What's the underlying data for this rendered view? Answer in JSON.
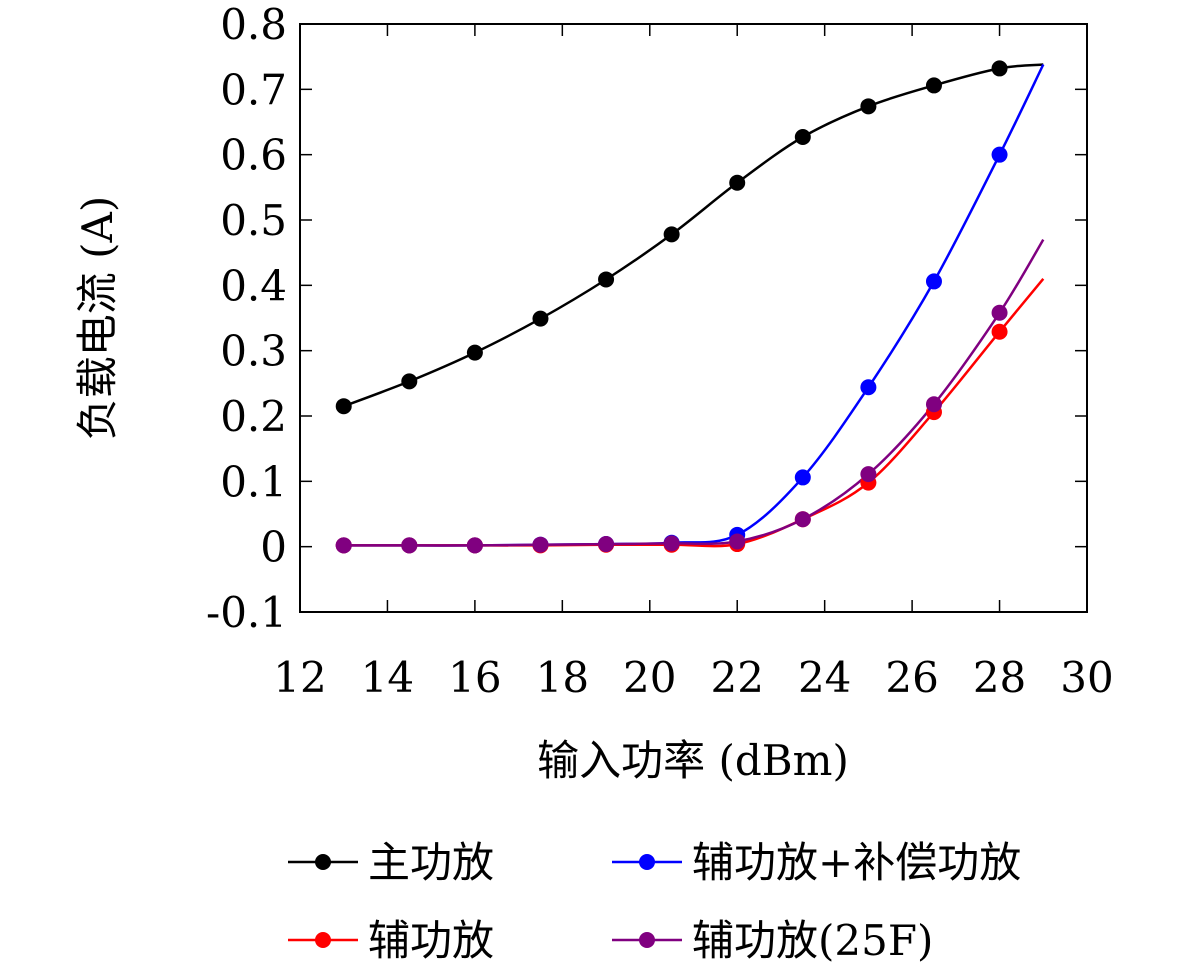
{
  "chart_data": {
    "type": "line",
    "xlabel": "输入功率 (dBm)",
    "ylabel": "负载电流 (A)",
    "xlim": [
      12,
      30
    ],
    "ylim": [
      -0.1,
      0.8
    ],
    "xticks": [
      "12",
      "14",
      "16",
      "18",
      "20",
      "22",
      "24",
      "26",
      "28",
      "30"
    ],
    "yticks": [
      "-0.1",
      "0",
      "0.1",
      "0.2",
      "0.3",
      "0.4",
      "0.5",
      "0.6",
      "0.7",
      "0.8"
    ],
    "grid": false,
    "legend_position": "bottom",
    "series": [
      {
        "name": "主功放",
        "color": "#000000",
        "x": [
          13,
          14.5,
          16,
          17.5,
          19,
          20.5,
          22,
          23.5,
          25,
          26.5,
          28
        ],
        "y": [
          0.215,
          0.253,
          0.297,
          0.349,
          0.409,
          0.478,
          0.557,
          0.627,
          0.674,
          0.706,
          0.732
        ],
        "curve_end": [
          29,
          0.738
        ]
      },
      {
        "name": "辅功放+补偿功放",
        "color": "#0000ff",
        "x": [
          13,
          14.5,
          16,
          17.5,
          19,
          20.5,
          22,
          23.5,
          25,
          26.5,
          28
        ],
        "y": [
          0.002,
          0.002,
          0.002,
          0.003,
          0.004,
          0.006,
          0.018,
          0.106,
          0.244,
          0.406,
          0.6
        ],
        "curve_end": [
          29,
          0.738
        ]
      },
      {
        "name": "辅功放",
        "color": "#ff0000",
        "x": [
          13,
          14.5,
          16,
          17.5,
          19,
          20.5,
          22,
          23.5,
          25,
          26.5,
          28
        ],
        "y": [
          0.002,
          0.002,
          0.002,
          0.002,
          0.003,
          0.003,
          0.004,
          0.042,
          0.098,
          0.206,
          0.329
        ],
        "curve_end": [
          29,
          0.41
        ]
      },
      {
        "name": "辅功放(25F)",
        "color": "#800080",
        "x": [
          13,
          14.5,
          16,
          17.5,
          19,
          20.5,
          22,
          23.5,
          25,
          26.5,
          28
        ],
        "y": [
          0.002,
          0.002,
          0.002,
          0.003,
          0.004,
          0.005,
          0.008,
          0.042,
          0.111,
          0.218,
          0.358
        ],
        "curve_end": [
          29,
          0.47
        ]
      }
    ]
  }
}
